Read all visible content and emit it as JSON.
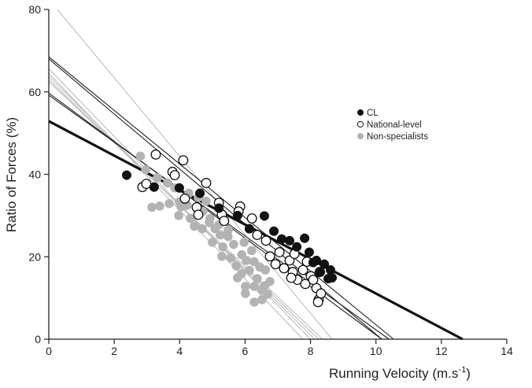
{
  "chart_data": {
    "type": "scatter",
    "xlabel": "Running Velocity (m.s",
    "xlabel_sup": "-1",
    "xlabel_close": ")",
    "ylabel": "Ratio of Forces (%)",
    "xlim": [
      0,
      14
    ],
    "ylim": [
      0,
      80
    ],
    "xticks": [
      0,
      2,
      4,
      6,
      8,
      10,
      12,
      14
    ],
    "yticks": [
      0,
      20,
      40,
      60,
      80
    ],
    "grid": false,
    "legend_position": "right",
    "series": [
      {
        "name": "CL",
        "marker": "filled-circle",
        "color": "#111111",
        "points": [
          [
            2.38,
            39.8
          ],
          [
            3.22,
            36.9
          ],
          [
            3.99,
            36.7
          ],
          [
            4.62,
            35.4
          ],
          [
            5.2,
            31.8
          ],
          [
            5.77,
            30.0
          ],
          [
            6.59,
            29.9
          ],
          [
            6.13,
            26.8
          ],
          [
            6.88,
            26.2
          ],
          [
            7.12,
            24.3
          ],
          [
            7.36,
            23.9
          ],
          [
            7.58,
            22.4
          ],
          [
            7.82,
            24.5
          ],
          [
            7.96,
            21.1
          ],
          [
            8.18,
            19.1
          ],
          [
            8.08,
            18.6
          ],
          [
            8.42,
            18.2
          ],
          [
            8.61,
            16.8
          ],
          [
            8.3,
            16.3
          ],
          [
            8.54,
            14.7
          ],
          [
            8.66,
            14.9
          ]
        ]
      },
      {
        "name": "National-level",
        "marker": "open-circle",
        "color": "#111111",
        "points": [
          [
            2.86,
            36.9
          ],
          [
            2.98,
            37.7
          ],
          [
            3.27,
            44.8
          ],
          [
            3.78,
            40.6
          ],
          [
            3.85,
            39.8
          ],
          [
            4.11,
            43.4
          ],
          [
            4.81,
            37.9
          ],
          [
            4.16,
            34.1
          ],
          [
            4.52,
            32.0
          ],
          [
            4.57,
            30.2
          ],
          [
            5.2,
            33.1
          ],
          [
            5.85,
            32.2
          ],
          [
            5.8,
            31.0
          ],
          [
            6.21,
            29.3
          ],
          [
            5.29,
            30.2
          ],
          [
            5.36,
            28.7
          ],
          [
            6.37,
            25.3
          ],
          [
            6.64,
            23.9
          ],
          [
            6.76,
            20.1
          ],
          [
            7.05,
            21.1
          ],
          [
            6.93,
            18.2
          ],
          [
            7.19,
            17.2
          ],
          [
            7.36,
            19.1
          ],
          [
            7.46,
            16.3
          ],
          [
            7.6,
            14.4
          ],
          [
            7.77,
            16.8
          ],
          [
            7.84,
            13.4
          ],
          [
            8.01,
            15.3
          ],
          [
            8.18,
            12.4
          ],
          [
            8.08,
            14.4
          ],
          [
            8.25,
            9.6
          ],
          [
            8.32,
            11.1
          ],
          [
            8.28,
            16.3
          ],
          [
            8.23,
            9.0
          ],
          [
            7.51,
            20.7
          ],
          [
            7.41,
            14.9
          ],
          [
            7.89,
            18.8
          ]
        ]
      },
      {
        "name": "Non-specialists",
        "marker": "filled-circle",
        "color": "#b3b3b3",
        "points": [
          [
            2.8,
            44.4
          ],
          [
            2.96,
            41.1
          ],
          [
            3.32,
            39.2
          ],
          [
            3.63,
            37.9
          ],
          [
            3.85,
            36.7
          ],
          [
            4.28,
            35.4
          ],
          [
            4.57,
            34.4
          ],
          [
            4.81,
            33.5
          ],
          [
            4.04,
            32.1
          ],
          [
            4.71,
            31.0
          ],
          [
            4.91,
            28.3
          ],
          [
            5.2,
            27.8
          ],
          [
            5.48,
            26.4
          ],
          [
            3.15,
            32.0
          ],
          [
            3.39,
            32.3
          ],
          [
            3.68,
            32.9
          ],
          [
            3.99,
            33.3
          ],
          [
            4.23,
            32.5
          ],
          [
            3.97,
            30.0
          ],
          [
            4.33,
            29.3
          ],
          [
            4.45,
            27.4
          ],
          [
            4.69,
            26.8
          ],
          [
            4.93,
            29.3
          ],
          [
            5.08,
            26.8
          ],
          [
            5.24,
            25.3
          ],
          [
            5.0,
            23.5
          ],
          [
            5.48,
            24.9
          ],
          [
            5.32,
            22.4
          ],
          [
            5.65,
            23.0
          ],
          [
            5.97,
            23.5
          ],
          [
            5.29,
            20.1
          ],
          [
            5.56,
            19.7
          ],
          [
            5.73,
            17.8
          ],
          [
            6.04,
            19.1
          ],
          [
            6.28,
            18.8
          ],
          [
            5.89,
            15.9
          ],
          [
            6.13,
            16.7
          ],
          [
            6.37,
            14.7
          ],
          [
            6.62,
            16.8
          ],
          [
            6.76,
            14.0
          ],
          [
            6.01,
            12.8
          ],
          [
            6.28,
            12.8
          ],
          [
            6.52,
            11.9
          ],
          [
            6.69,
            10.9
          ],
          [
            6.01,
            11.1
          ],
          [
            6.28,
            9.0
          ],
          [
            6.52,
            9.6
          ],
          [
            5.77,
            14.9
          ],
          [
            6.45,
            17.5
          ],
          [
            6.6,
            13.0
          ],
          [
            5.9,
            20.5
          ],
          [
            6.2,
            21.5
          ]
        ]
      }
    ],
    "regression_lines": [
      {
        "group": "CL",
        "color": "#111111",
        "width": "thick",
        "from": [
          0,
          52.9
        ],
        "to": [
          12.65,
          0
        ]
      },
      {
        "group": "National-level",
        "color": "#222222",
        "width": "thin",
        "from": [
          0,
          68.5
        ],
        "to": [
          10.54,
          0
        ]
      },
      {
        "group": "National-level",
        "color": "#222222",
        "width": "thin",
        "from": [
          0,
          68.0
        ],
        "to": [
          10.18,
          0
        ]
      },
      {
        "group": "National-level",
        "color": "#222222",
        "width": "thin",
        "from": [
          0,
          59.7
        ],
        "to": [
          10.18,
          0
        ]
      },
      {
        "group": "National-level",
        "color": "#222222",
        "width": "thin",
        "from": [
          0,
          59.2
        ],
        "to": [
          10.4,
          0
        ]
      },
      {
        "group": "Non-specialists",
        "color": "#bdbdbd",
        "width": "thin",
        "from": [
          0.26,
          80
        ],
        "to": [
          8.66,
          0
        ]
      },
      {
        "group": "Non-specialists",
        "color": "#bdbdbd",
        "width": "thin",
        "from": [
          0,
          65.6
        ],
        "to": [
          8.0,
          0
        ]
      },
      {
        "group": "Non-specialists",
        "color": "#bdbdbd",
        "width": "thin",
        "from": [
          0,
          64.5
        ],
        "to": [
          7.77,
          0
        ]
      },
      {
        "group": "Non-specialists",
        "color": "#bdbdbd",
        "width": "thin",
        "from": [
          0,
          63.8
        ],
        "to": [
          8.13,
          0
        ]
      },
      {
        "group": "Non-specialists",
        "color": "#bdbdbd",
        "width": "thin",
        "from": [
          0,
          63.0
        ],
        "to": [
          8.25,
          0
        ]
      },
      {
        "group": "Non-specialists",
        "color": "#bdbdbd",
        "width": "thin",
        "from": [
          0,
          62.5
        ],
        "to": [
          8.37,
          0
        ]
      }
    ]
  }
}
